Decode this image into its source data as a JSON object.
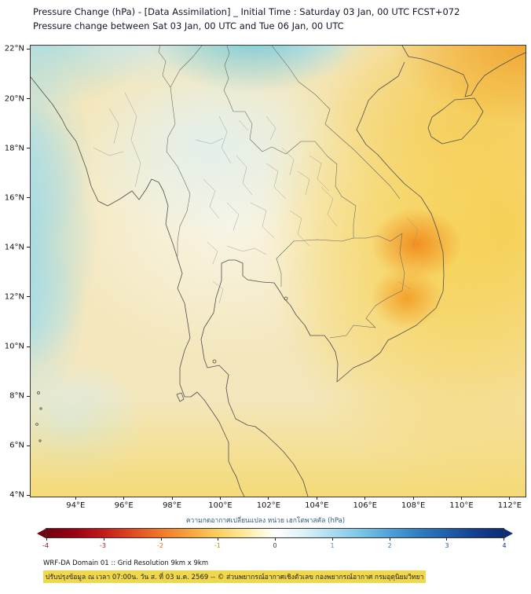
{
  "header": {
    "title_line1": "Pressure Change (hPa) - [Data Assimilation] _ Initial Time : Saturday 03 Jan, 00 UTC FCST+072",
    "title_line2": "Pressure change between Sat 03 Jan, 00 UTC and Tue 06 Jan, 00 UTC"
  },
  "map": {
    "x_tick_labels": [
      "94°E",
      "96°E",
      "98°E",
      "100°E",
      "102°E",
      "104°E",
      "106°E",
      "108°E",
      "110°E",
      "112°E"
    ],
    "y_tick_labels": [
      "22°N",
      "20°N",
      "18°N",
      "16°N",
      "14°N",
      "12°N",
      "10°N",
      "8°N",
      "6°N",
      "4°N"
    ],
    "lon_min_deg_east": 94,
    "lon_max_deg_east": 112,
    "lat_min_deg_north": 4,
    "lat_max_deg_north": 22
  },
  "colorbar": {
    "label": "ความกดอากาศเปลี่ยนแปลง หน่วย เฮกโตพาสคัล (hPa)",
    "tick_labels": [
      "-4",
      "-3",
      "-2",
      "-1",
      "0",
      "1",
      "2",
      "3",
      "4"
    ],
    "tick_label_colors": [
      "#8a0010",
      "#b42015",
      "#d96a1e",
      "#c8960a",
      "#444444",
      "#3f93c9",
      "#2a78bb",
      "#1c56a4",
      "#0d2f78"
    ],
    "min": -4,
    "max": 4,
    "unit": "hPa",
    "colors": {
      "negative_extreme": "#73000f",
      "negative_mid": "#f07828",
      "negative_weak": "#fccf5e",
      "zero": "#ffffff",
      "positive_weak": "#aadcf0",
      "positive_mid": "#4fa3d8",
      "positive_extreme": "#0c2d74"
    }
  },
  "footer": {
    "line1": "WRF-DA Domain 01 :: Grid Resolution 9km x 9km",
    "line2": "ปรับปรุงข้อมูล ณ เวลา 07:00น. วัน ส. ที่ 03 ม.ค. 2569 -- © ส่วนพยากรณ์อากาศเชิงตัวเลข กองพยากรณ์อากาศ กรมอุตุนิยมวิทยา"
  },
  "chart_data": {
    "type": "heatmap",
    "title": "Pressure change (hPa) between Sat 03 Jan 00 UTC and Tue 06 Jan 00 UTC, WRF-DA Domain 01",
    "x_range_deg_east": [
      94,
      112
    ],
    "y_range_deg_north": [
      4,
      22
    ],
    "colorbar_range_hpa": [
      -4,
      4
    ],
    "colorbar_orientation": "negative (pressure fall) = red/orange/yellow on left, positive (pressure rise) = blue on right",
    "features": [
      {
        "description": "strongest pressure-fall center (orange) near south-central Vietnam coast",
        "lon": 108.2,
        "lat": 14.2,
        "value_hpa": -2
      },
      {
        "description": "secondary pressure-fall center (orange) southern Vietnam",
        "lon": 107.8,
        "lat": 12.0,
        "value_hpa": -2
      },
      {
        "description": "deep pressure-fall area at top-right corner (South China Sea)",
        "lon": 112,
        "lat": 22,
        "value_hpa": -2.5
      },
      {
        "description": "broad pressure fall (yellow) over Indochina, Gulf of Thailand and lower map",
        "value_hpa": -1
      },
      {
        "description": "pressure rise (cyan) blob at top-center over northern Laos/Thailand border",
        "lon": 101.5,
        "lat": 22,
        "value_hpa": 1
      },
      {
        "description": "pressure rise (cyan) along left edge over Bay of Bengal",
        "lon": 94,
        "lat": 13,
        "value_hpa": 1
      },
      {
        "description": "light rise (pale cyan) top-left corner",
        "lon": 94,
        "lat": 22,
        "value_hpa": 0.5
      },
      {
        "description": "near-zero (white) band over central/northern Thailand",
        "value_hpa": 0
      }
    ]
  }
}
